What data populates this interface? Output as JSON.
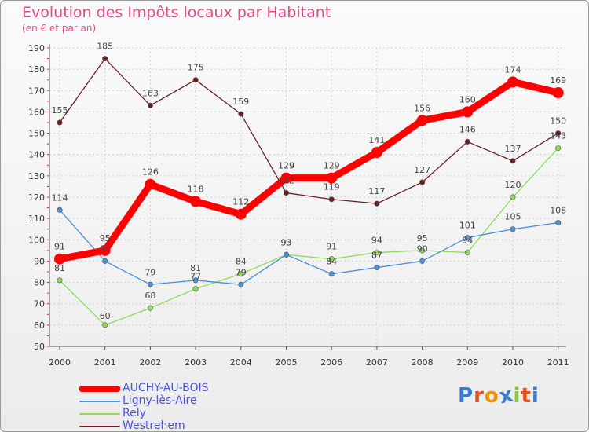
{
  "title": "Evolution des Impôts locaux par Habitant",
  "subtitle": "(en € et par an)",
  "logo": {
    "text": "Proxiti",
    "colors": [
      "#3a7bd5",
      "#e94e1b",
      "#f39200",
      "#3a7bd5",
      "#8cc63f",
      "#e94e1b",
      "#3a7bd5"
    ]
  },
  "chart_data": {
    "type": "line",
    "title": "Evolution des Impôts locaux par Habitant",
    "subtitle": "(en € et par an)",
    "x": [
      "2000",
      "2001",
      "2002",
      "2003",
      "2004",
      "2005",
      "2006",
      "2007",
      "2008",
      "2009",
      "2010",
      "2011"
    ],
    "ylim": [
      50,
      190
    ],
    "yticks": [
      50,
      60,
      70,
      80,
      90,
      100,
      110,
      120,
      130,
      140,
      150,
      160,
      170,
      180,
      190
    ],
    "grid": true,
    "legend_position": "bottom-left",
    "series": [
      {
        "name": "AUCHY-AU-BOIS",
        "color": "#ff0000",
        "values": [
          91,
          95,
          126,
          118,
          112,
          129,
          129,
          141,
          156,
          160,
          174,
          169
        ]
      },
      {
        "name": "Ligny-lès-Aire",
        "color": "#4a90d9",
        "values": [
          114,
          90,
          79,
          81,
          79,
          93,
          84,
          87,
          90,
          101,
          105,
          108
        ]
      },
      {
        "name": "Rely",
        "color": "#8fdc5a",
        "values": [
          81,
          60,
          68,
          77,
          84,
          93,
          91,
          94,
          95,
          94,
          120,
          143
        ]
      },
      {
        "name": "Westrehem",
        "color": "#6b1f24",
        "values": [
          155,
          185,
          163,
          175,
          159,
          122,
          119,
          117,
          127,
          146,
          137,
          150
        ]
      }
    ]
  }
}
